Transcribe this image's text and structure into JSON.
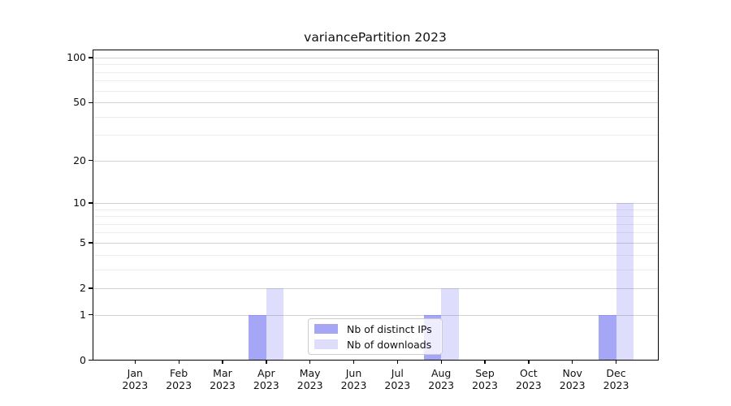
{
  "chart": {
    "title": "variancePartition 2023",
    "legend": {
      "items": [
        {
          "label": "Nb of distinct IPs",
          "color": "#a6a6f5"
        },
        {
          "label": "Nb of downloads",
          "color": "#dedefb"
        }
      ]
    }
  },
  "chart_data": {
    "type": "bar",
    "title": "variancePartition 2023",
    "categories": [
      "Jan",
      "Feb",
      "Mar",
      "Apr",
      "May",
      "Jun",
      "Jul",
      "Aug",
      "Sep",
      "Oct",
      "Nov",
      "Dec"
    ],
    "year": "2023",
    "series": [
      {
        "name": "Nb of distinct IPs",
        "fill": "rgba(98,98,239,0.57)",
        "values": [
          0,
          0,
          0,
          1,
          0,
          0,
          0,
          1,
          0,
          0,
          0,
          1
        ]
      },
      {
        "name": "Nb of downloads",
        "fill": "rgba(98,98,239,0.21)",
        "values": [
          0,
          0,
          0,
          2,
          0,
          0,
          0,
          2,
          0,
          0,
          0,
          10
        ]
      }
    ],
    "xlabel": "",
    "ylabel": "",
    "yscale": "log10(1+x)",
    "ylim": [
      0,
      113
    ],
    "yticks": [
      0,
      1,
      2,
      5,
      10,
      20,
      50,
      100
    ],
    "yticks_minor": [
      3,
      4,
      6,
      7,
      8,
      9,
      30,
      40,
      60,
      70,
      80,
      90
    ],
    "grid": "horizontal major+minor",
    "legend_position": "lower-center-inside"
  }
}
